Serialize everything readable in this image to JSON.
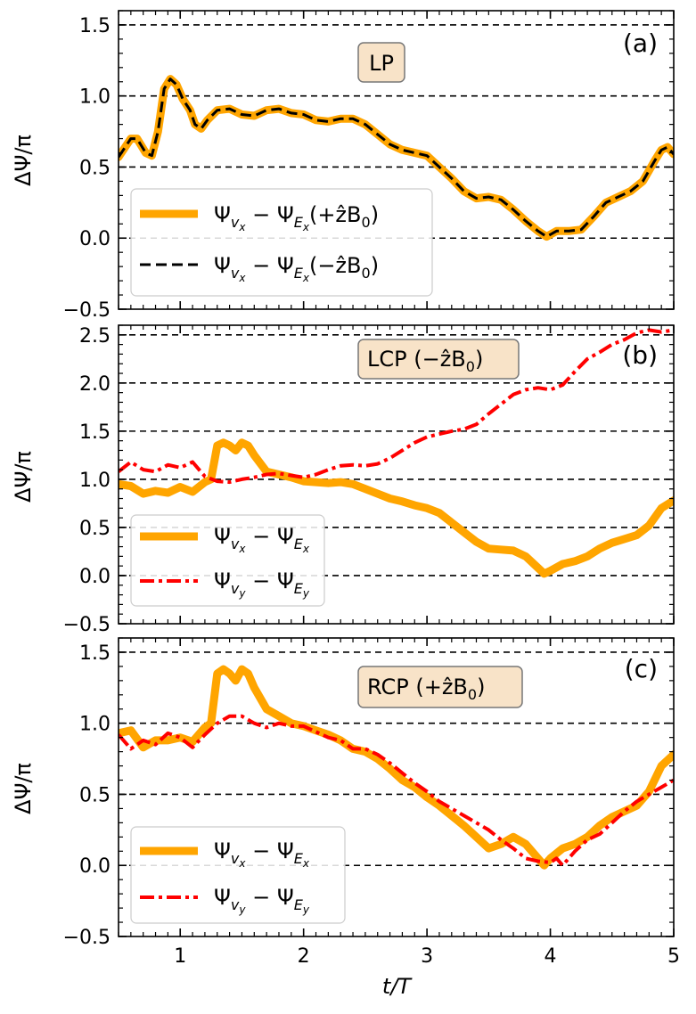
{
  "chart_data": {
    "type": "line",
    "shared_x_axis": {
      "label": "t/T",
      "xlim": [
        0.5,
        5.0
      ],
      "ticks": [
        1,
        2,
        3,
        4,
        5
      ],
      "tick_labels": [
        "1",
        "2",
        "3",
        "4",
        "5"
      ]
    },
    "y_axis_label": "ΔΨ/π",
    "panels": [
      {
        "id": "a",
        "tag": "(a)",
        "badge": "LP",
        "ylim": [
          -0.5,
          1.6
        ],
        "yticks": [
          -0.5,
          0.0,
          0.5,
          1.0,
          1.5
        ],
        "ytick_labels": [
          "−0.5",
          "0.0",
          "0.5",
          "1.0",
          "1.5"
        ],
        "hlines": [
          0.0,
          0.5,
          1.0,
          1.5
        ],
        "series": [
          {
            "name": "Ψ_vx − Ψ_Ex(+ẑB0)",
            "legend_main": "Ψ",
            "legend_sub1": "v",
            "legend_sub2": "x",
            "legend_mid": " − Ψ",
            "legend_sub3": "E",
            "legend_sub4": "x",
            "legend_tail": "(+ẑB",
            "legend_tail_sub": "0",
            "legend_close": ")",
            "color": "#FFA500",
            "style": "solid-thick",
            "x": [
              0.5,
              0.6,
              0.65,
              0.72,
              0.77,
              0.82,
              0.87,
              0.92,
              0.97,
              1.02,
              1.08,
              1.12,
              1.17,
              1.22,
              1.3,
              1.4,
              1.5,
              1.6,
              1.7,
              1.8,
              1.9,
              2.0,
              2.1,
              2.2,
              2.3,
              2.4,
              2.5,
              2.6,
              2.7,
              2.8,
              2.9,
              3.0,
              3.1,
              3.2,
              3.3,
              3.4,
              3.5,
              3.6,
              3.7,
              3.8,
              3.9,
              3.97,
              4.05,
              4.15,
              4.25,
              4.35,
              4.45,
              4.55,
              4.65,
              4.75,
              4.85,
              4.9,
              4.95,
              5.0
            ],
            "y": [
              0.57,
              0.7,
              0.7,
              0.6,
              0.58,
              0.75,
              1.05,
              1.12,
              1.08,
              0.98,
              0.9,
              0.8,
              0.77,
              0.83,
              0.9,
              0.91,
              0.87,
              0.86,
              0.9,
              0.91,
              0.88,
              0.87,
              0.83,
              0.82,
              0.84,
              0.84,
              0.8,
              0.73,
              0.66,
              0.62,
              0.6,
              0.58,
              0.5,
              0.42,
              0.33,
              0.28,
              0.29,
              0.27,
              0.2,
              0.12,
              0.05,
              0.01,
              0.05,
              0.05,
              0.06,
              0.15,
              0.25,
              0.29,
              0.33,
              0.4,
              0.55,
              0.62,
              0.64,
              0.59
            ]
          },
          {
            "name": "Ψ_vx − Ψ_Ex(−ẑB0)",
            "legend_main": "Ψ",
            "legend_sub1": "v",
            "legend_sub2": "x",
            "legend_mid": " − Ψ",
            "legend_sub3": "E",
            "legend_sub4": "x",
            "legend_tail": "(−ẑB",
            "legend_tail_sub": "0",
            "legend_close": ")",
            "color": "#000000",
            "style": "dashed",
            "x": [
              0.5,
              0.6,
              0.65,
              0.72,
              0.77,
              0.82,
              0.87,
              0.92,
              0.97,
              1.02,
              1.08,
              1.12,
              1.17,
              1.22,
              1.3,
              1.4,
              1.5,
              1.6,
              1.7,
              1.8,
              1.9,
              2.0,
              2.1,
              2.2,
              2.3,
              2.4,
              2.5,
              2.6,
              2.7,
              2.8,
              2.9,
              3.0,
              3.1,
              3.2,
              3.3,
              3.4,
              3.5,
              3.6,
              3.7,
              3.8,
              3.9,
              3.97,
              4.05,
              4.15,
              4.25,
              4.35,
              4.45,
              4.55,
              4.65,
              4.75,
              4.85,
              4.9,
              4.95,
              5.0
            ],
            "y": [
              0.57,
              0.7,
              0.7,
              0.6,
              0.58,
              0.75,
              1.05,
              1.12,
              1.08,
              0.98,
              0.9,
              0.8,
              0.77,
              0.83,
              0.9,
              0.91,
              0.87,
              0.86,
              0.9,
              0.91,
              0.88,
              0.87,
              0.83,
              0.82,
              0.84,
              0.84,
              0.8,
              0.73,
              0.66,
              0.62,
              0.6,
              0.58,
              0.5,
              0.42,
              0.33,
              0.28,
              0.29,
              0.27,
              0.2,
              0.12,
              0.05,
              0.01,
              0.05,
              0.05,
              0.06,
              0.15,
              0.25,
              0.29,
              0.33,
              0.4,
              0.55,
              0.62,
              0.64,
              0.59
            ]
          }
        ]
      },
      {
        "id": "b",
        "tag": "(b)",
        "badge": "LCP (−ẑB",
        "badge_sub": "0",
        "badge_close": ")",
        "ylim": [
          -0.5,
          2.6
        ],
        "yticks": [
          -0.5,
          0.0,
          0.5,
          1.0,
          1.5,
          2.0,
          2.5
        ],
        "ytick_labels": [
          "−0.5",
          "0.0",
          "0.5",
          "1.0",
          "1.5",
          "2.0",
          "2.5"
        ],
        "hlines": [
          0.0,
          0.5,
          1.0,
          1.5,
          2.0,
          2.5
        ],
        "series": [
          {
            "name": "Ψ_vx − Ψ_Ex",
            "legend_main": "Ψ",
            "legend_sub1": "v",
            "legend_sub2": "x",
            "legend_mid": " − Ψ",
            "legend_sub3": "E",
            "legend_sub4": "x",
            "color": "#FFA500",
            "style": "solid-thick",
            "x": [
              0.5,
              0.6,
              0.7,
              0.8,
              0.9,
              1.0,
              1.1,
              1.2,
              1.25,
              1.3,
              1.35,
              1.4,
              1.45,
              1.5,
              1.55,
              1.6,
              1.7,
              1.8,
              1.9,
              2.0,
              2.1,
              2.2,
              2.3,
              2.4,
              2.5,
              2.6,
              2.7,
              2.8,
              2.9,
              3.0,
              3.1,
              3.2,
              3.3,
              3.4,
              3.5,
              3.6,
              3.7,
              3.8,
              3.9,
              3.95,
              4.0,
              4.1,
              4.2,
              4.3,
              4.4,
              4.5,
              4.6,
              4.7,
              4.8,
              4.9,
              5.0
            ],
            "y": [
              0.95,
              0.93,
              0.85,
              0.88,
              0.86,
              0.92,
              0.87,
              0.97,
              1.0,
              1.35,
              1.38,
              1.35,
              1.3,
              1.38,
              1.35,
              1.25,
              1.08,
              1.05,
              1.02,
              0.98,
              0.97,
              0.96,
              0.97,
              0.95,
              0.9,
              0.85,
              0.8,
              0.77,
              0.73,
              0.7,
              0.65,
              0.55,
              0.45,
              0.35,
              0.28,
              0.27,
              0.26,
              0.2,
              0.08,
              0.02,
              0.05,
              0.12,
              0.15,
              0.2,
              0.28,
              0.34,
              0.38,
              0.42,
              0.52,
              0.7,
              0.78
            ]
          },
          {
            "name": "Ψ_vy − Ψ_Ey",
            "legend_main": "Ψ",
            "legend_sub1": "v",
            "legend_sub2": "y",
            "legend_mid": " − Ψ",
            "legend_sub3": "E",
            "legend_sub4": "y",
            "color": "#FF0000",
            "style": "dashdot",
            "x": [
              0.5,
              0.6,
              0.7,
              0.8,
              0.9,
              1.0,
              1.1,
              1.2,
              1.3,
              1.4,
              1.5,
              1.6,
              1.7,
              1.8,
              1.9,
              2.0,
              2.1,
              2.2,
              2.3,
              2.4,
              2.5,
              2.6,
              2.7,
              2.8,
              2.9,
              3.0,
              3.1,
              3.2,
              3.3,
              3.4,
              3.5,
              3.6,
              3.7,
              3.8,
              3.9,
              4.0,
              4.1,
              4.2,
              4.3,
              4.4,
              4.5,
              4.6,
              4.7,
              4.8,
              4.9,
              5.0
            ],
            "y": [
              1.08,
              1.18,
              1.1,
              1.08,
              1.15,
              1.12,
              1.18,
              1.03,
              0.98,
              0.97,
              1.0,
              1.02,
              1.05,
              1.06,
              1.04,
              1.02,
              1.05,
              1.1,
              1.14,
              1.15,
              1.14,
              1.16,
              1.22,
              1.3,
              1.38,
              1.44,
              1.47,
              1.5,
              1.52,
              1.57,
              1.68,
              1.78,
              1.88,
              1.93,
              1.95,
              1.93,
              1.98,
              2.12,
              2.25,
              2.32,
              2.4,
              2.45,
              2.52,
              2.55,
              2.53,
              2.55
            ]
          }
        ]
      },
      {
        "id": "c",
        "tag": "(c)",
        "badge": "RCP (+ẑB",
        "badge_sub": "0",
        "badge_close": ")",
        "ylim": [
          -0.5,
          1.6
        ],
        "yticks": [
          -0.5,
          0.0,
          0.5,
          1.0,
          1.5
        ],
        "ytick_labels": [
          "−0.5",
          "0.0",
          "0.5",
          "1.0",
          "1.5"
        ],
        "hlines": [
          0.0,
          0.5,
          1.0,
          1.5
        ],
        "series": [
          {
            "name": "Ψ_vx − Ψ_Ex",
            "legend_main": "Ψ",
            "legend_sub1": "v",
            "legend_sub2": "x",
            "legend_mid": " − Ψ",
            "legend_sub3": "E",
            "legend_sub4": "x",
            "color": "#FFA500",
            "style": "solid-thick",
            "x": [
              0.5,
              0.6,
              0.7,
              0.8,
              0.9,
              1.0,
              1.1,
              1.2,
              1.25,
              1.3,
              1.35,
              1.4,
              1.45,
              1.5,
              1.55,
              1.6,
              1.7,
              1.8,
              1.9,
              2.0,
              2.1,
              2.2,
              2.3,
              2.4,
              2.5,
              2.6,
              2.7,
              2.8,
              2.9,
              3.0,
              3.1,
              3.2,
              3.3,
              3.4,
              3.5,
              3.6,
              3.7,
              3.8,
              3.9,
              3.95,
              4.0,
              4.1,
              4.2,
              4.3,
              4.4,
              4.5,
              4.6,
              4.7,
              4.8,
              4.9,
              5.0
            ],
            "y": [
              0.93,
              0.95,
              0.83,
              0.88,
              0.88,
              0.9,
              0.87,
              0.97,
              1.0,
              1.35,
              1.38,
              1.35,
              1.3,
              1.38,
              1.35,
              1.25,
              1.1,
              1.05,
              1.0,
              0.98,
              0.95,
              0.92,
              0.88,
              0.82,
              0.8,
              0.75,
              0.68,
              0.6,
              0.55,
              0.48,
              0.42,
              0.35,
              0.28,
              0.2,
              0.12,
              0.15,
              0.2,
              0.15,
              0.05,
              0.0,
              0.05,
              0.12,
              0.15,
              0.2,
              0.28,
              0.34,
              0.38,
              0.42,
              0.52,
              0.7,
              0.78
            ]
          },
          {
            "name": "Ψ_vy − Ψ_Ey",
            "legend_main": "Ψ",
            "legend_sub1": "v",
            "legend_sub2": "y",
            "legend_mid": " − Ψ",
            "legend_sub3": "E",
            "legend_sub4": "y",
            "color": "#FF0000",
            "style": "dashdot",
            "x": [
              0.5,
              0.6,
              0.7,
              0.8,
              0.9,
              1.0,
              1.1,
              1.2,
              1.3,
              1.4,
              1.5,
              1.6,
              1.7,
              1.8,
              1.9,
              2.0,
              2.1,
              2.2,
              2.3,
              2.4,
              2.5,
              2.6,
              2.7,
              2.8,
              2.9,
              3.0,
              3.1,
              3.2,
              3.3,
              3.4,
              3.5,
              3.6,
              3.7,
              3.8,
              3.9,
              4.0,
              4.05,
              4.1,
              4.2,
              4.3,
              4.4,
              4.5,
              4.6,
              4.7,
              4.8,
              4.9,
              5.0
            ],
            "y": [
              0.92,
              0.82,
              0.88,
              0.85,
              0.93,
              0.9,
              0.83,
              0.92,
              1.0,
              1.05,
              1.05,
              1.0,
              0.97,
              1.0,
              0.98,
              0.98,
              0.94,
              0.9,
              0.88,
              0.82,
              0.82,
              0.78,
              0.72,
              0.65,
              0.58,
              0.52,
              0.45,
              0.4,
              0.35,
              0.3,
              0.25,
              0.18,
              0.12,
              0.05,
              0.03,
              0.02,
              0.05,
              0.0,
              0.1,
              0.18,
              0.22,
              0.3,
              0.38,
              0.45,
              0.5,
              0.55,
              0.6
            ]
          }
        ]
      }
    ]
  }
}
